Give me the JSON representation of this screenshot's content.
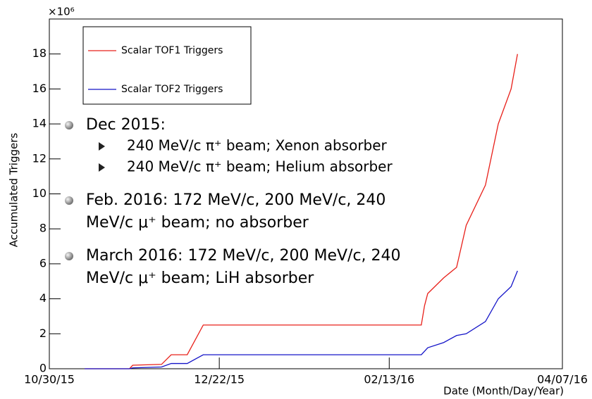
{
  "chart_data": {
    "type": "line",
    "y_label": "Accumulated Triggers",
    "x_label": "Date (Month/Day/Year)",
    "y_exponent": "×10⁶",
    "x": [
      "2015-11-10",
      "2015-11-24",
      "2015-11-25",
      "2015-12-04",
      "2015-12-07",
      "2015-12-12",
      "2015-12-17",
      "2016-02-23",
      "2016-02-24",
      "2016-02-25",
      "2016-03-01",
      "2016-03-05",
      "2016-03-08",
      "2016-03-14",
      "2016-03-18",
      "2016-03-22",
      "2016-03-24"
    ],
    "series": [
      {
        "name": "Scalar TOF1 Triggers",
        "color": "#e8201a",
        "values": [
          0,
          0,
          0.2,
          0.25,
          0.8,
          0.8,
          2.5,
          2.5,
          3.6,
          4.3,
          5.2,
          5.8,
          8.2,
          10.5,
          14,
          16,
          18
        ]
      },
      {
        "name": "Scalar TOF2 Triggers",
        "color": "#1414c8",
        "values": [
          0,
          0,
          0.05,
          0.1,
          0.3,
          0.3,
          0.8,
          0.8,
          1.0,
          1.2,
          1.5,
          1.9,
          2.0,
          2.7,
          4.0,
          4.7,
          5.6
        ]
      }
    ],
    "xlim": [
      "2015-10-30",
      "2016-04-07"
    ],
    "xticks": [
      {
        "value": "2015-10-30",
        "label": "10/30/15"
      },
      {
        "value": "2015-12-22",
        "label": "12/22/15"
      },
      {
        "value": "2016-02-13",
        "label": "02/13/16"
      },
      {
        "value": "2016-04-07",
        "label": "04/07/16"
      }
    ],
    "ylim": [
      0,
      20
    ],
    "yticks": [
      0,
      2,
      4,
      6,
      8,
      10,
      12,
      14,
      16,
      18
    ],
    "legend": "top-left",
    "notes": [
      {
        "text": "Dec 2015:",
        "items": [
          "240 MeV/c π⁺ beam; Xenon absorber",
          "240 MeV/c π⁺ beam; Helium absorber"
        ]
      },
      {
        "lines": [
          "Feb. 2016: 172 MeV/c, 200 MeV/c, 240",
          "MeV/c μ⁺ beam; no absorber"
        ]
      },
      {
        "lines": [
          "March 2016: 172 MeV/c, 200 MeV/c, 240",
          "MeV/c μ⁺ beam; LiH absorber"
        ]
      }
    ]
  }
}
